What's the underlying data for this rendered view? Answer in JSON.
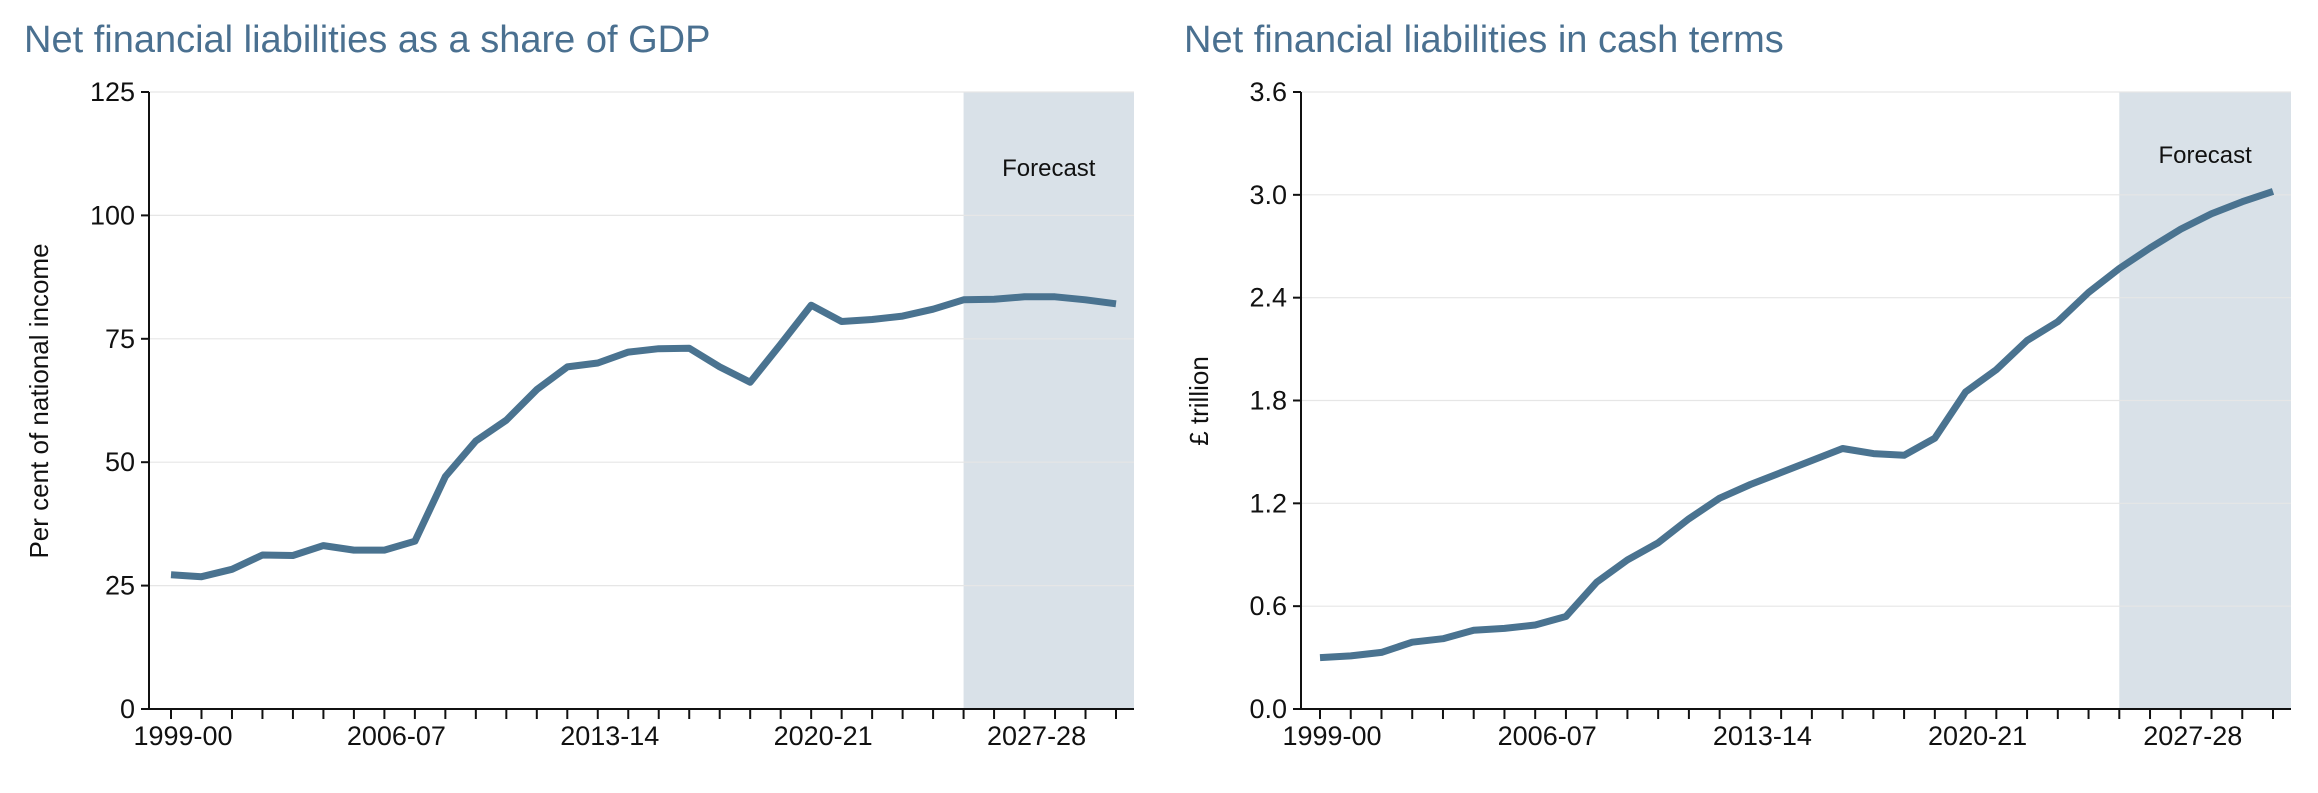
{
  "colors": {
    "line": "#4a7390",
    "forecast_shade": "#d9e1e8",
    "title": "#4a7090",
    "grid": "#e6e6e6"
  },
  "chart_data": [
    {
      "type": "line",
      "title": "Net financial liabilities as a share of GDP",
      "xlabel": "",
      "ylabel": "Per cent of national income",
      "ylim": [
        0,
        125
      ],
      "yticks": [
        "0",
        "25",
        "50",
        "75",
        "100",
        "125"
      ],
      "grid": "horizontal",
      "forecast_label": "Forecast",
      "forecast_start": "2025-26",
      "x": [
        "1999-00",
        "2000-01",
        "2001-02",
        "2002-03",
        "2003-04",
        "2004-05",
        "2005-06",
        "2006-07",
        "2007-08",
        "2008-09",
        "2009-10",
        "2010-11",
        "2011-12",
        "2012-13",
        "2013-14",
        "2014-15",
        "2015-16",
        "2016-17",
        "2017-18",
        "2018-19",
        "2019-20",
        "2020-21",
        "2021-22",
        "2022-23",
        "2023-24",
        "2024-25",
        "2025-26",
        "2026-27",
        "2027-28",
        "2028-29",
        "2029-30",
        "2030-31"
      ],
      "xtick_labels": [
        "1999-00",
        "2006-07",
        "2013-14",
        "2020-21",
        "2027-28"
      ],
      "values": [
        27.2,
        26.8,
        28.3,
        31.2,
        31.1,
        33.1,
        32.2,
        32.2,
        34.0,
        47.1,
        54.3,
        58.5,
        64.7,
        69.3,
        70.1,
        72.3,
        73.0,
        73.1,
        69.3,
        66.2,
        73.9,
        81.8,
        78.5,
        78.9,
        79.6,
        81.0,
        82.9,
        83.0,
        83.5,
        83.5,
        82.9,
        82.1
      ]
    },
    {
      "type": "line",
      "title": "Net financial liabilities in cash terms",
      "xlabel": "",
      "ylabel": "£ trillion",
      "ylim": [
        0,
        3.6
      ],
      "yticks": [
        "0.0",
        "0.6",
        "1.2",
        "1.8",
        "2.4",
        "3.0",
        "3.6"
      ],
      "grid": "horizontal",
      "forecast_label": "Forecast",
      "forecast_start": "2025-26",
      "x": [
        "1999-00",
        "2000-01",
        "2001-02",
        "2002-03",
        "2003-04",
        "2004-05",
        "2005-06",
        "2006-07",
        "2007-08",
        "2008-09",
        "2009-10",
        "2010-11",
        "2011-12",
        "2012-13",
        "2013-14",
        "2014-15",
        "2015-16",
        "2016-17",
        "2017-18",
        "2018-19",
        "2019-20",
        "2020-21",
        "2021-22",
        "2022-23",
        "2023-24",
        "2024-25",
        "2025-26",
        "2026-27",
        "2027-28",
        "2028-29",
        "2029-30",
        "2030-31"
      ],
      "xtick_labels": [
        "1999-00",
        "2006-07",
        "2013-14",
        "2020-21",
        "2027-28"
      ],
      "values": [
        0.3,
        0.31,
        0.33,
        0.39,
        0.41,
        0.46,
        0.47,
        0.49,
        0.54,
        0.74,
        0.87,
        0.97,
        1.11,
        1.23,
        1.31,
        1.38,
        1.45,
        1.52,
        1.49,
        1.48,
        1.58,
        1.85,
        1.98,
        2.15,
        2.26,
        2.43,
        2.57,
        2.69,
        2.8,
        2.89,
        2.96,
        3.02
      ]
    }
  ]
}
